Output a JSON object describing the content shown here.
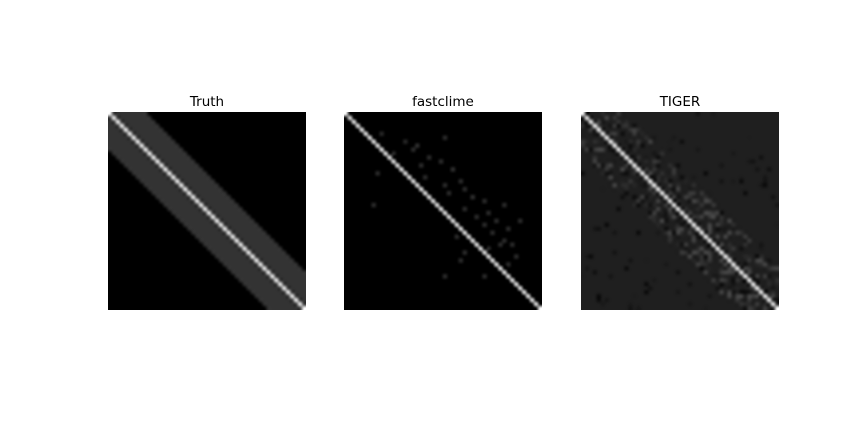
{
  "chart_data": [
    {
      "type": "heatmap",
      "title": "Truth",
      "colormap": "gray",
      "n": 50,
      "diagonal_value": 1.0,
      "band_width": 9,
      "band_value": 0.2,
      "background_value": 0.0,
      "grid": false,
      "axes_visible": false
    },
    {
      "type": "heatmap",
      "title": "fastclime",
      "colormap": "gray",
      "n": 50,
      "diagonal_value": 1.0,
      "background_value": 0.0,
      "sparse_entries": [
        [
          6,
          25,
          0.2
        ],
        [
          7,
          15,
          0.18
        ],
        [
          8,
          18,
          0.22
        ],
        [
          10,
          12,
          0.2
        ],
        [
          11,
          21,
          0.2
        ],
        [
          12,
          24,
          0.2
        ],
        [
          13,
          19,
          0.2
        ],
        [
          14,
          27,
          0.22
        ],
        [
          15,
          8,
          0.2
        ],
        [
          16,
          20,
          0.2
        ],
        [
          17,
          29,
          0.2
        ],
        [
          18,
          25,
          0.2
        ],
        [
          19,
          30,
          0.2
        ],
        [
          20,
          26,
          0.2
        ],
        [
          21,
          32,
          0.22
        ],
        [
          22,
          35,
          0.2
        ],
        [
          23,
          7,
          0.2
        ],
        [
          24,
          30,
          0.2
        ],
        [
          25,
          36,
          0.2
        ],
        [
          26,
          33,
          0.2
        ],
        [
          27,
          38,
          0.2
        ],
        [
          28,
          35,
          0.2
        ],
        [
          29,
          41,
          0.2
        ],
        [
          30,
          37,
          0.2
        ],
        [
          31,
          28,
          0.2
        ],
        [
          32,
          40,
          0.2
        ],
        [
          33,
          42,
          0.2
        ],
        [
          34,
          36,
          0.2
        ],
        [
          35,
          30,
          0.2
        ],
        [
          36,
          43,
          0.2
        ],
        [
          38,
          41,
          0.2
        ],
        [
          41,
          25,
          0.2
        ],
        [
          41,
          35,
          0.2
        ],
        [
          37,
          29,
          0.2
        ],
        [
          23,
          40,
          0.2
        ],
        [
          9,
          17,
          0.2
        ],
        [
          5,
          9,
          0.18
        ],
        [
          27,
          44,
          0.2
        ],
        [
          33,
          39,
          0.2
        ]
      ],
      "grid": false,
      "axes_visible": false
    },
    {
      "type": "heatmap",
      "title": "TIGER",
      "colormap": "gray",
      "n": 50,
      "diagonal_value": 1.0,
      "background_value": 0.12,
      "noise_band_width": 10,
      "noise_range": [
        0.03,
        0.3
      ],
      "grid": false,
      "axes_visible": false
    }
  ]
}
